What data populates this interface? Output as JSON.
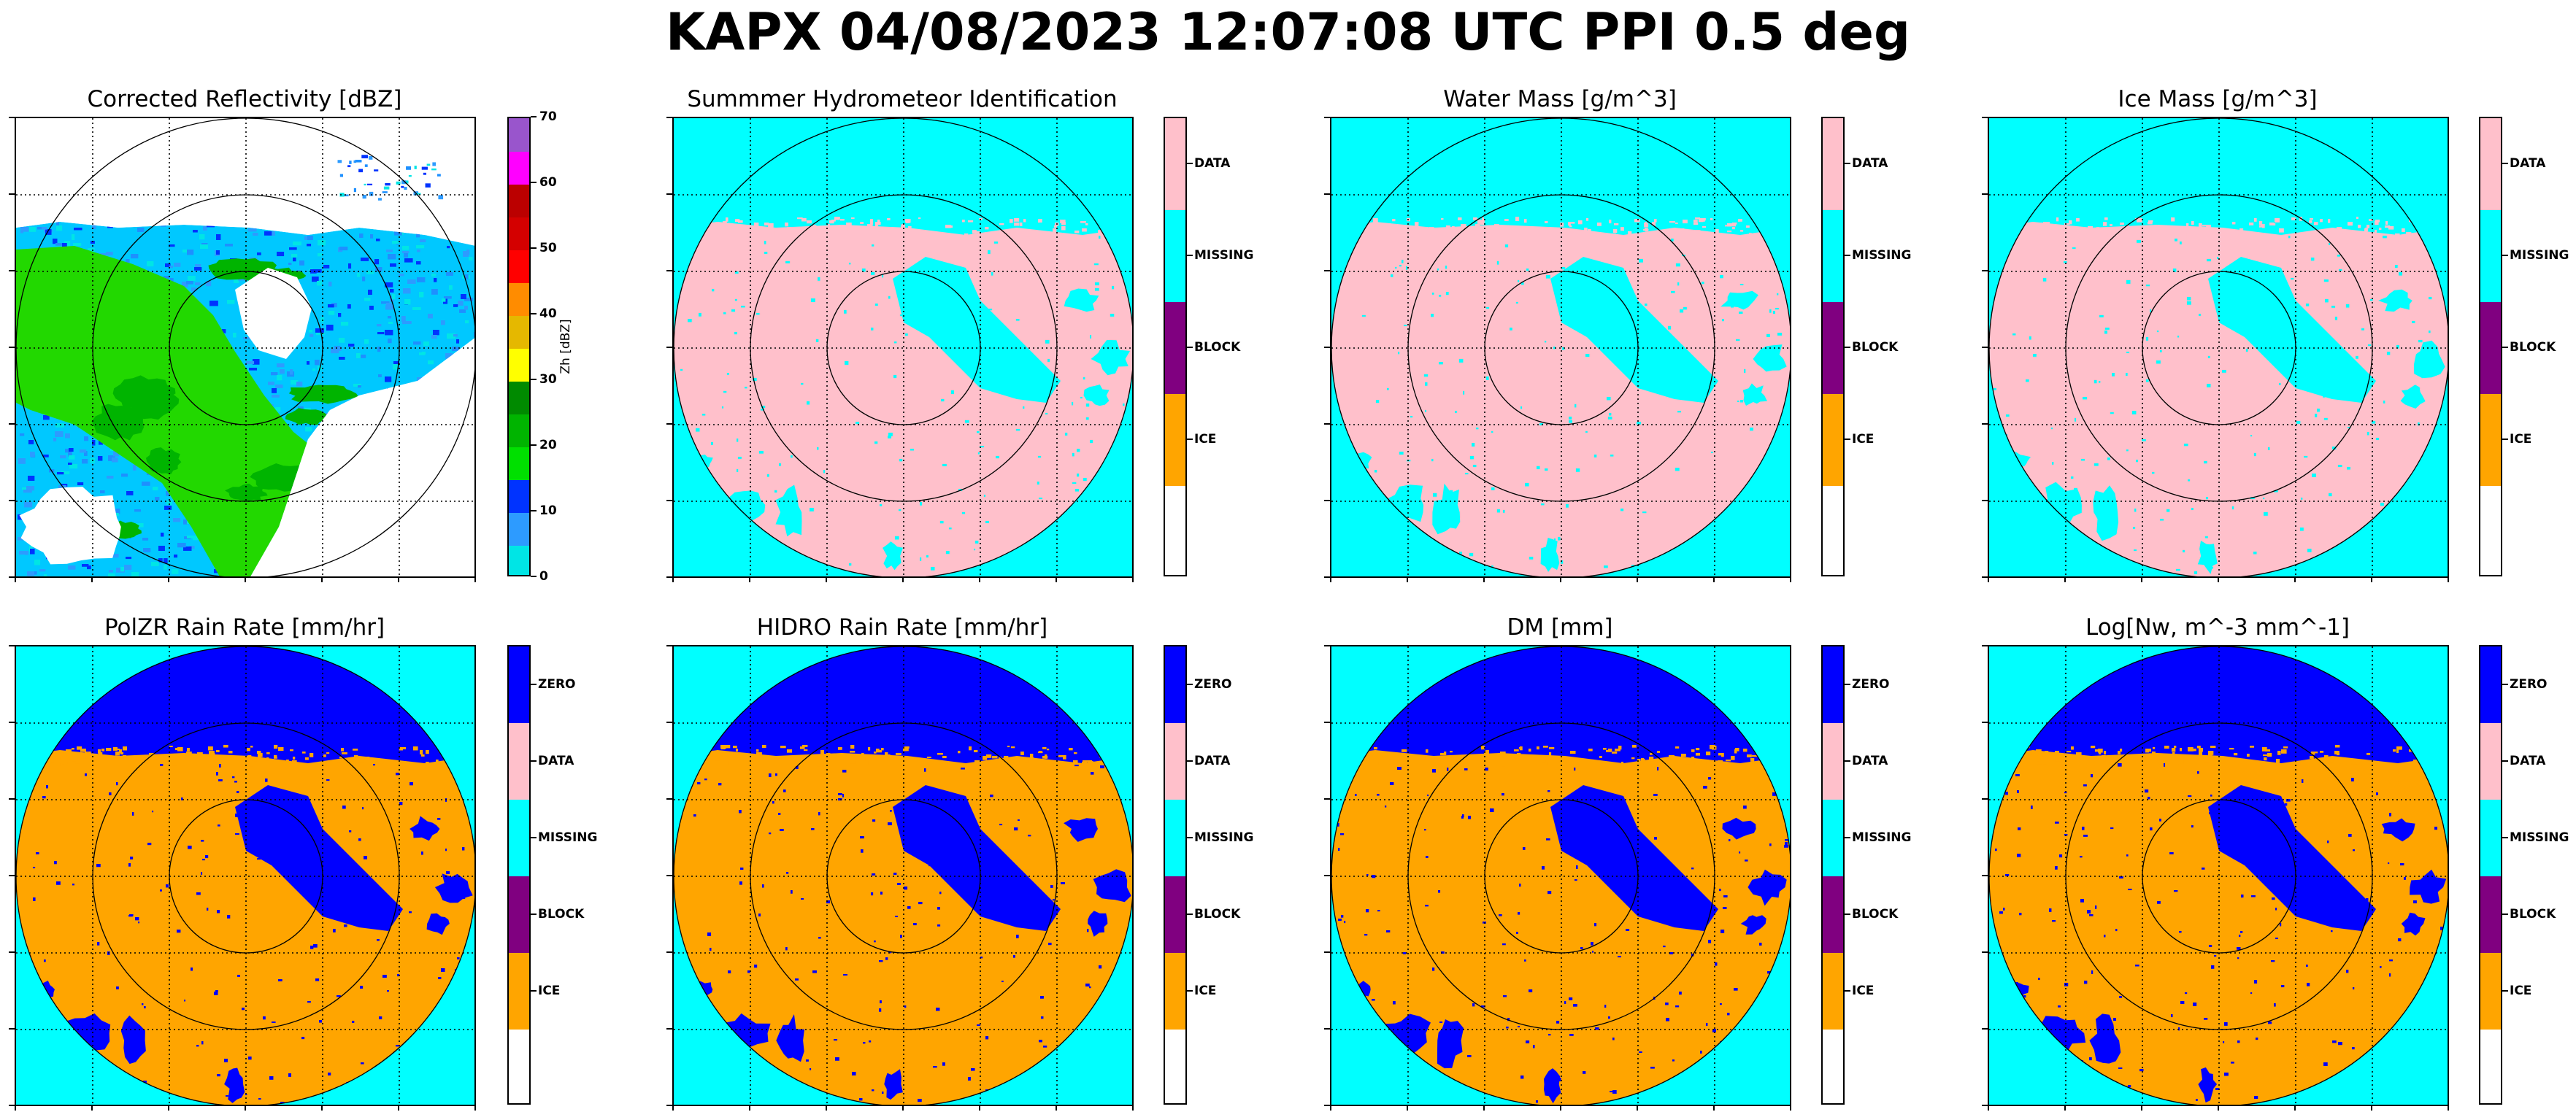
{
  "figure": {
    "suptitle": "KAPX 04/08/2023 12:07:08 UTC PPI 0.5 deg"
  },
  "colors": {
    "ice": "#FFA500",
    "block": "#800080",
    "missing": "#00FFFF",
    "data": "#FFC0CB",
    "zero": "#0000FF",
    "none": "#FFFFFF"
  },
  "reflectivity_colorbar": {
    "ylabel": "Zh [dBZ]",
    "ticks": [
      "0",
      "10",
      "20",
      "30",
      "40",
      "50",
      "60",
      "70"
    ],
    "colors": [
      "#00E5E5",
      "#2D9BFF",
      "#0033FF",
      "#00E000",
      "#00B400",
      "#008A00",
      "#FFFF00",
      "#E5B800",
      "#FF8C00",
      "#FF0000",
      "#D40000",
      "#BB0000",
      "#FF00FF",
      "#9955CC"
    ],
    "range": [
      0,
      70
    ]
  },
  "chart_data": [
    {
      "type": "heatmap",
      "title": "Corrected Reflectivity [dBZ]",
      "colorbar_label": "Zh [dBZ]",
      "colorbar_range": [
        0,
        70
      ],
      "colorbar_ticks": [
        0,
        10,
        20,
        30,
        40,
        50,
        60,
        70
      ],
      "grid": true,
      "range_rings": 3
    },
    {
      "type": "heatmap",
      "title": "Summmer Hydrometeor Identification",
      "categories": [
        "ICE",
        "BLOCK",
        "MISSING",
        "DATA"
      ],
      "grid": true,
      "range_rings": 3
    },
    {
      "type": "heatmap",
      "title": "Water Mass [g/m^3]",
      "categories": [
        "ICE",
        "BLOCK",
        "MISSING",
        "DATA"
      ],
      "grid": true,
      "range_rings": 3
    },
    {
      "type": "heatmap",
      "title": "Ice Mass [g/m^3]",
      "categories": [
        "ICE",
        "BLOCK",
        "MISSING",
        "DATA"
      ],
      "grid": true,
      "range_rings": 3
    },
    {
      "type": "heatmap",
      "title": "PolZR Rain Rate [mm/hr]",
      "categories": [
        "ICE",
        "BLOCK",
        "MISSING",
        "DATA",
        "ZERO"
      ],
      "grid": true,
      "range_rings": 3
    },
    {
      "type": "heatmap",
      "title": "HIDRO Rain Rate [mm/hr]",
      "categories": [
        "ICE",
        "BLOCK",
        "MISSING",
        "DATA",
        "ZERO"
      ],
      "grid": true,
      "range_rings": 3
    },
    {
      "type": "heatmap",
      "title": "DM [mm]",
      "categories": [
        "ICE",
        "BLOCK",
        "MISSING",
        "DATA",
        "ZERO"
      ],
      "grid": true,
      "range_rings": 3
    },
    {
      "type": "heatmap",
      "title": "Log[Nw, m^-3 mm^-1]",
      "categories": [
        "ICE",
        "BLOCK",
        "MISSING",
        "DATA",
        "ZERO"
      ],
      "grid": true,
      "range_rings": 3
    }
  ]
}
